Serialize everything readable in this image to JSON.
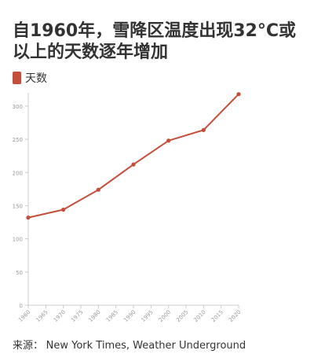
{
  "title": "自1960年，雪降区温度出现32°C或以上的天数逐年增加",
  "legend": [
    {
      "label": "天数",
      "color": "#c44e3a"
    }
  ],
  "source": {
    "label": "来源：",
    "text": "New York Times, Weather Underground"
  },
  "chart_data": {
    "type": "line",
    "title": "自1960年，雪降区温度出现32°C或以上的天数逐年增加",
    "xlabel": "",
    "ylabel": "",
    "x_ticks": [
      "1960",
      "1965",
      "1970",
      "1975",
      "1980",
      "1985",
      "1990",
      "1995",
      "2000",
      "2005",
      "2010",
      "2015",
      "2020"
    ],
    "y_ticks": [
      0,
      50,
      100,
      150,
      200,
      250,
      300
    ],
    "xlim": [
      1960,
      2020
    ],
    "ylim": [
      0,
      320
    ],
    "grid": false,
    "legend_position": "top-left",
    "series": [
      {
        "name": "天数",
        "color": "#c44e3a",
        "x": [
          1960,
          1970,
          1980,
          1990,
          2000,
          2010,
          2020
        ],
        "y": [
          132,
          144,
          174,
          212,
          248,
          264,
          318
        ]
      }
    ]
  }
}
